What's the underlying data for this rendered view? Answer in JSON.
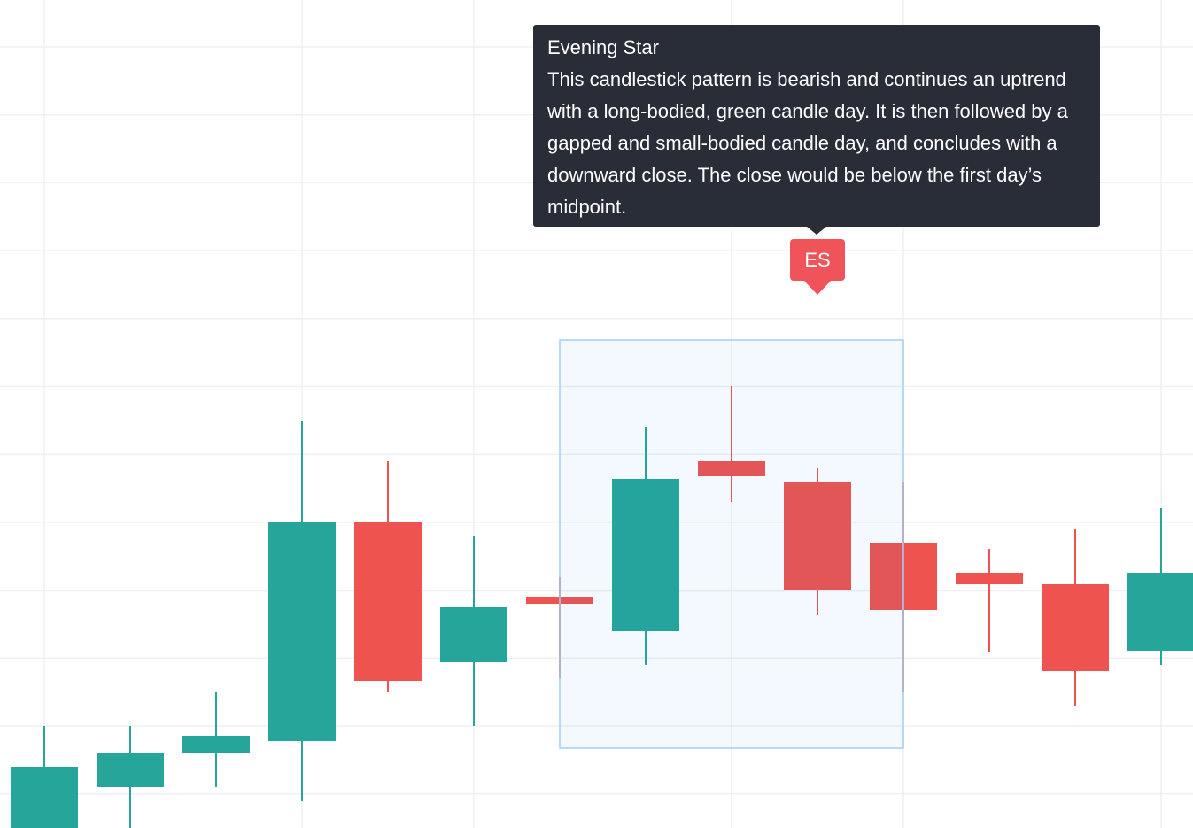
{
  "chart_data": {
    "type": "candlestick",
    "title": "",
    "xlabel": "",
    "ylabel": "",
    "grid": true,
    "colors": {
      "up": "#26a69a",
      "down": "#ef5350",
      "grid": "#eef0f5",
      "selection_fill": "#2196f3",
      "selection_border": "#9fd0f6",
      "tooltip_bg": "#292d38",
      "marker": "#f0545a"
    },
    "candles": [
      {
        "open": 0,
        "high": 115,
        "low": -10,
        "close": 69
      },
      {
        "open": 46,
        "high": 115,
        "low": 0,
        "close": 85
      },
      {
        "open": 85,
        "high": 154,
        "low": 46,
        "close": 104
      },
      {
        "open": 98,
        "high": 460,
        "low": 30,
        "close": 345
      },
      {
        "open": 346,
        "high": 414,
        "low": 154,
        "close": 166
      },
      {
        "open": 188,
        "high": 330,
        "low": 115,
        "close": 250
      },
      {
        "open": 261,
        "high": 284,
        "low": 169,
        "close": 253
      },
      {
        "open": 223,
        "high": 453,
        "low": 184,
        "close": 394
      },
      {
        "open": 414,
        "high": 499,
        "low": 368,
        "close": 398
      },
      {
        "open": 391,
        "high": 407,
        "low": 241,
        "close": 269
      },
      {
        "open": 322,
        "high": 391,
        "low": 154,
        "close": 246
      },
      {
        "open": 288,
        "high": 315,
        "low": 199,
        "close": 276
      },
      {
        "open": 276,
        "high": 338,
        "low": 138,
        "close": 177
      },
      {
        "open": 200,
        "high": 361,
        "low": 184,
        "close": 288
      }
    ],
    "pattern": {
      "label": "ES",
      "name": "Evening Star",
      "description": "This candlestick pattern is bearish and continues an uptrend with a long-bodied, green candle day. It is then followed by a gapped and small-bodied candle day, and concludes with a downward close. The close would be below the first day’s midpoint.",
      "candle_range": [
        6,
        10
      ],
      "sentiment": "bearish"
    }
  }
}
